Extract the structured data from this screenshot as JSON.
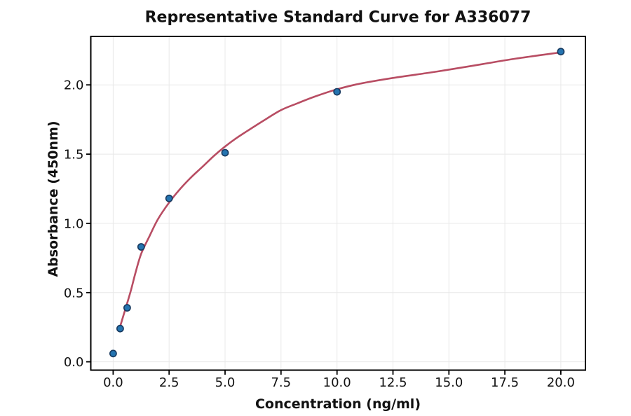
{
  "chart_data": {
    "type": "scatter",
    "title": "Representative Standard Curve for A336077",
    "xlabel": "Concentration (ng/ml)",
    "ylabel": "Absorbance (450nm)",
    "xlim": [
      -1.0,
      21.1
    ],
    "ylim": [
      -0.06,
      2.35
    ],
    "x_ticks": [
      0,
      2.5,
      5,
      7.5,
      10,
      12.5,
      15,
      17.5,
      20
    ],
    "x_tick_labels": [
      "0.0",
      "2.5",
      "5.0",
      "7.5",
      "10.0",
      "12.5",
      "15.0",
      "17.5",
      "20.0"
    ],
    "y_ticks": [
      0,
      0.5,
      1,
      1.5,
      2
    ],
    "y_tick_labels": [
      "0.0",
      "0.5",
      "1.0",
      "1.5",
      "2.0"
    ],
    "grid": true,
    "legend": false,
    "series": [
      {
        "name": "standard-points",
        "type": "scatter",
        "marker": "circle",
        "marker_color": "#2474b0",
        "marker_edge_color": "#17395f",
        "points": [
          [
            0,
            0.06
          ],
          [
            0.313,
            0.24
          ],
          [
            0.625,
            0.39
          ],
          [
            1.25,
            0.83
          ],
          [
            2.5,
            1.18
          ],
          [
            5,
            1.51
          ],
          [
            10,
            1.95
          ],
          [
            20,
            2.24
          ]
        ]
      },
      {
        "name": "fit-curve",
        "type": "line",
        "color": "#b84d63",
        "points": [
          [
            0.32,
            0.26
          ],
          [
            0.45,
            0.33
          ],
          [
            0.6,
            0.41
          ],
          [
            0.8,
            0.52
          ],
          [
            1.0,
            0.645
          ],
          [
            1.25,
            0.78
          ],
          [
            1.6,
            0.9
          ],
          [
            2.0,
            1.03
          ],
          [
            2.5,
            1.15
          ],
          [
            3.0,
            1.25
          ],
          [
            3.5,
            1.335
          ],
          [
            4.0,
            1.41
          ],
          [
            4.5,
            1.487
          ],
          [
            5.0,
            1.555
          ],
          [
            5.5,
            1.615
          ],
          [
            6.0,
            1.668
          ],
          [
            6.75,
            1.745
          ],
          [
            7.5,
            1.818
          ],
          [
            8.25,
            1.868
          ],
          [
            9.0,
            1.915
          ],
          [
            10.0,
            1.968
          ],
          [
            11.0,
            2.008
          ],
          [
            12.5,
            2.05
          ],
          [
            14.0,
            2.085
          ],
          [
            15.0,
            2.11
          ],
          [
            16.5,
            2.15
          ],
          [
            18.0,
            2.19
          ],
          [
            20.0,
            2.235
          ]
        ]
      }
    ],
    "colors": {
      "background": "#ffffff",
      "spine": "#000000",
      "grid": "#e8e8e8",
      "text": "#111111"
    }
  }
}
